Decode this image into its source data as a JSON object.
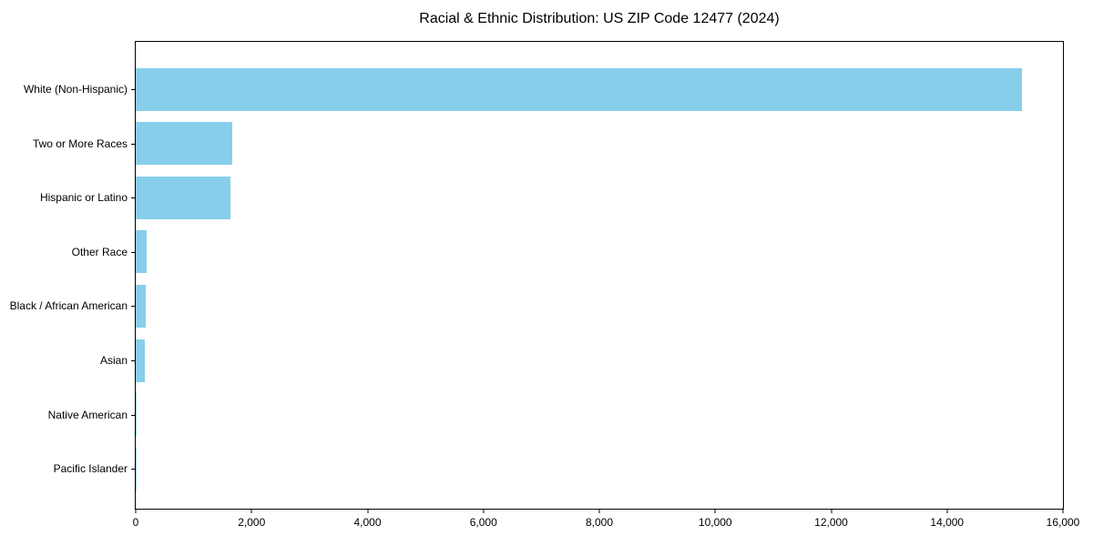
{
  "chart_data": {
    "type": "bar",
    "orientation": "horizontal",
    "title": "Racial & Ethnic Distribution: US ZIP Code 12477 (2024)",
    "categories": [
      "White (Non-Hispanic)",
      "Two or More Races",
      "Hispanic or Latino",
      "Other Race",
      "Black / African American",
      "Asian",
      "Native American",
      "Pacific Islander"
    ],
    "values": [
      15300,
      1670,
      1630,
      195,
      180,
      150,
      12,
      4
    ],
    "xlabel": "",
    "ylabel": "",
    "xlim": [
      0,
      16000
    ],
    "xticks": [
      0,
      2000,
      4000,
      6000,
      8000,
      10000,
      12000,
      14000,
      16000
    ],
    "xtick_labels": [
      "0",
      "2,000",
      "4,000",
      "6,000",
      "8,000",
      "10,000",
      "12,000",
      "14,000",
      "16,000"
    ],
    "bar_color": "#87CEEB",
    "axis_color": "#000000",
    "background_color": "#ffffff",
    "grid": false,
    "legend": "none"
  }
}
